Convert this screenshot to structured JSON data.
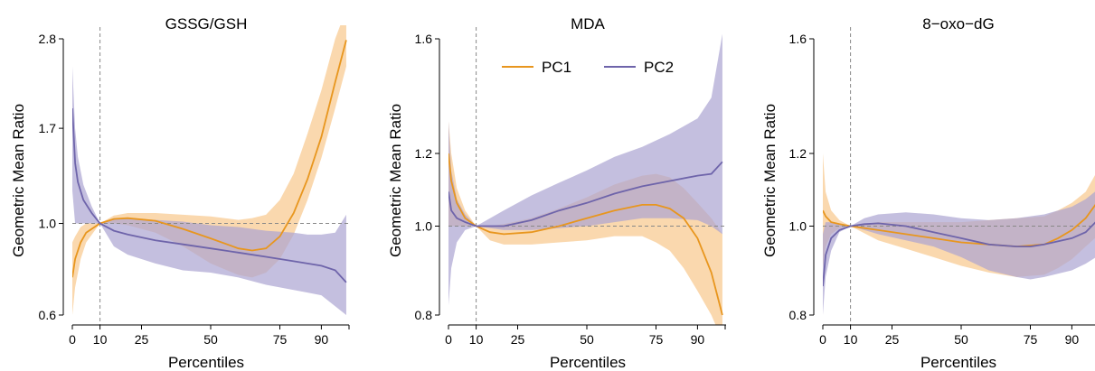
{
  "chart_data": [
    {
      "type": "line",
      "title": "GSSG/GSH",
      "xlabel": "Percentiles",
      "ylabel": "Geometric Mean Ratio",
      "xlim": [
        0,
        100
      ],
      "ylim": [
        0.6,
        2.8
      ],
      "log_y": true,
      "x_ticks": [
        0,
        10,
        25,
        50,
        75,
        90
      ],
      "y_ticks": [
        0.6,
        1.0,
        1.7,
        2.8
      ],
      "y_tick_labels": [
        "0.6",
        "1.0",
        "1.7",
        "2.8"
      ],
      "reference_x": 10,
      "reference_y": 1.0,
      "series": [
        {
          "name": "PC1",
          "color": "#E8961E",
          "band_color": "#F8C88C",
          "x": [
            0,
            1,
            3,
            5,
            10,
            15,
            20,
            30,
            40,
            50,
            60,
            65,
            70,
            75,
            80,
            85,
            90,
            95,
            99
          ],
          "y": [
            0.74,
            0.82,
            0.9,
            0.95,
            1.0,
            1.025,
            1.03,
            1.015,
            0.97,
            0.92,
            0.87,
            0.86,
            0.87,
            0.93,
            1.06,
            1.28,
            1.62,
            2.2,
            2.78
          ],
          "lower": [
            0.6,
            0.7,
            0.82,
            0.9,
            1.0,
            1.0,
            0.99,
            0.95,
            0.88,
            0.8,
            0.75,
            0.74,
            0.76,
            0.82,
            0.94,
            1.14,
            1.44,
            1.9,
            2.4
          ],
          "upper": [
            0.9,
            0.93,
            0.98,
            1.0,
            1.0,
            1.045,
            1.06,
            1.06,
            1.05,
            1.04,
            1.02,
            1.03,
            1.05,
            1.14,
            1.32,
            1.65,
            2.1,
            2.8,
            3.3
          ]
        },
        {
          "name": "PC2",
          "color": "#6E64AA",
          "band_color": "#ABA4D2",
          "x": [
            0,
            1,
            2,
            4,
            7,
            10,
            15,
            20,
            30,
            40,
            50,
            60,
            70,
            80,
            85,
            90,
            95,
            99
          ],
          "y": [
            1.9,
            1.4,
            1.26,
            1.14,
            1.06,
            1.0,
            0.96,
            0.94,
            0.91,
            0.89,
            0.87,
            0.85,
            0.83,
            0.81,
            0.8,
            0.79,
            0.77,
            0.72
          ],
          "lower": [
            1.2,
            1.0,
            1.0,
            1.0,
            1.0,
            1.0,
            0.88,
            0.84,
            0.8,
            0.77,
            0.76,
            0.74,
            0.71,
            0.69,
            0.68,
            0.67,
            0.63,
            0.6
          ],
          "upper": [
            2.4,
            1.7,
            1.45,
            1.24,
            1.1,
            1.0,
            1.03,
            1.03,
            1.02,
            1.01,
            0.99,
            0.98,
            0.96,
            0.95,
            0.94,
            0.94,
            0.95,
            1.05
          ]
        }
      ]
    },
    {
      "type": "line",
      "title": "MDA",
      "xlabel": "Percentiles",
      "ylabel": "Geometric Mean Ratio",
      "xlim": [
        0,
        100
      ],
      "ylim": [
        0.8,
        1.6
      ],
      "log_y": true,
      "x_ticks": [
        0,
        10,
        25,
        50,
        75,
        90
      ],
      "y_ticks": [
        0.8,
        1.0,
        1.2,
        1.6
      ],
      "y_tick_labels": [
        "0.8",
        "1.0",
        "1.2",
        "1.6"
      ],
      "reference_x": 10,
      "reference_y": 1.0,
      "legend": {
        "position": "top-center",
        "entries": [
          "PC1",
          "PC2"
        ]
      },
      "series": [
        {
          "name": "PC1",
          "color": "#E8961E",
          "band_color": "#F8C88C",
          "x": [
            0,
            1,
            3,
            6,
            10,
            15,
            20,
            30,
            40,
            50,
            60,
            70,
            75,
            80,
            85,
            90,
            95,
            99
          ],
          "y": [
            1.2,
            1.12,
            1.06,
            1.02,
            1.0,
            0.985,
            0.98,
            0.985,
            1.0,
            1.02,
            1.04,
            1.055,
            1.055,
            1.045,
            1.02,
            0.97,
            0.89,
            0.8
          ],
          "lower": [
            1.0,
            1.0,
            1.0,
            1.0,
            1.0,
            0.965,
            0.955,
            0.955,
            0.96,
            0.965,
            0.975,
            0.975,
            0.96,
            0.94,
            0.9,
            0.85,
            0.8,
            0.75
          ],
          "upper": [
            1.3,
            1.2,
            1.1,
            1.04,
            1.0,
            1.0,
            1.005,
            1.02,
            1.045,
            1.075,
            1.11,
            1.135,
            1.14,
            1.13,
            1.1,
            1.06,
            1.02,
            0.98
          ]
        },
        {
          "name": "PC2",
          "color": "#6E64AA",
          "band_color": "#ABA4D2",
          "x": [
            0,
            1,
            3,
            6,
            10,
            20,
            30,
            40,
            50,
            60,
            70,
            80,
            90,
            95,
            99
          ],
          "y": [
            1.09,
            1.04,
            1.02,
            1.01,
            1.0,
            1.0,
            1.015,
            1.04,
            1.06,
            1.085,
            1.105,
            1.12,
            1.135,
            1.14,
            1.175
          ],
          "lower": [
            0.82,
            0.9,
            0.96,
            0.99,
            1.0,
            0.99,
            0.99,
            0.995,
            1.0,
            1.01,
            1.02,
            1.02,
            1.015,
            1.0,
            0.98
          ],
          "upper": [
            1.3,
            1.15,
            1.07,
            1.03,
            1.0,
            1.04,
            1.08,
            1.115,
            1.15,
            1.19,
            1.22,
            1.26,
            1.31,
            1.38,
            1.62
          ]
        }
      ]
    },
    {
      "type": "line",
      "title": "8−oxo−dG",
      "xlabel": "Percentiles",
      "ylabel": "Geometric Mean Ratio",
      "xlim": [
        0,
        100
      ],
      "ylim": [
        0.8,
        1.6
      ],
      "log_y": true,
      "x_ticks": [
        0,
        10,
        25,
        50,
        75,
        90
      ],
      "y_ticks": [
        0.8,
        1.0,
        1.2,
        1.6
      ],
      "y_tick_labels": [
        "0.8",
        "1.0",
        "1.2",
        "1.6"
      ],
      "reference_x": 10,
      "reference_y": 1.0,
      "series": [
        {
          "name": "PC1",
          "color": "#E8961E",
          "band_color": "#F8C88C",
          "x": [
            0,
            1,
            3,
            6,
            10,
            20,
            30,
            40,
            50,
            60,
            70,
            80,
            85,
            90,
            95,
            100
          ],
          "y": [
            1.04,
            1.025,
            1.01,
            1.005,
            1.0,
            0.99,
            0.98,
            0.97,
            0.96,
            0.955,
            0.95,
            0.955,
            0.97,
            0.99,
            1.02,
            1.07
          ],
          "lower": [
            0.9,
            0.95,
            0.98,
            0.995,
            1.0,
            0.965,
            0.945,
            0.925,
            0.905,
            0.89,
            0.88,
            0.885,
            0.9,
            0.92,
            0.95,
            0.98
          ],
          "upper": [
            1.2,
            1.09,
            1.04,
            1.015,
            1.0,
            1.01,
            1.01,
            1.01,
            1.01,
            1.015,
            1.02,
            1.025,
            1.04,
            1.06,
            1.09,
            1.16
          ]
        },
        {
          "name": "PC2",
          "color": "#6E64AA",
          "band_color": "#ABA4D2",
          "x": [
            0,
            1,
            3,
            6,
            10,
            15,
            20,
            30,
            40,
            50,
            60,
            70,
            75,
            80,
            90,
            95,
            100
          ],
          "y": [
            0.86,
            0.93,
            0.97,
            0.99,
            1.0,
            1.005,
            1.007,
            1.0,
            0.985,
            0.97,
            0.955,
            0.95,
            0.95,
            0.955,
            0.97,
            0.985,
            1.02
          ],
          "lower": [
            0.8,
            0.88,
            0.94,
            0.985,
            1.0,
            0.99,
            0.98,
            0.965,
            0.95,
            0.925,
            0.895,
            0.88,
            0.875,
            0.88,
            0.895,
            0.91,
            0.93
          ],
          "upper": [
            0.98,
            1.01,
            1.01,
            1.005,
            1.0,
            1.02,
            1.03,
            1.035,
            1.03,
            1.02,
            1.015,
            1.02,
            1.025,
            1.03,
            1.05,
            1.07,
            1.1
          ]
        }
      ]
    }
  ]
}
